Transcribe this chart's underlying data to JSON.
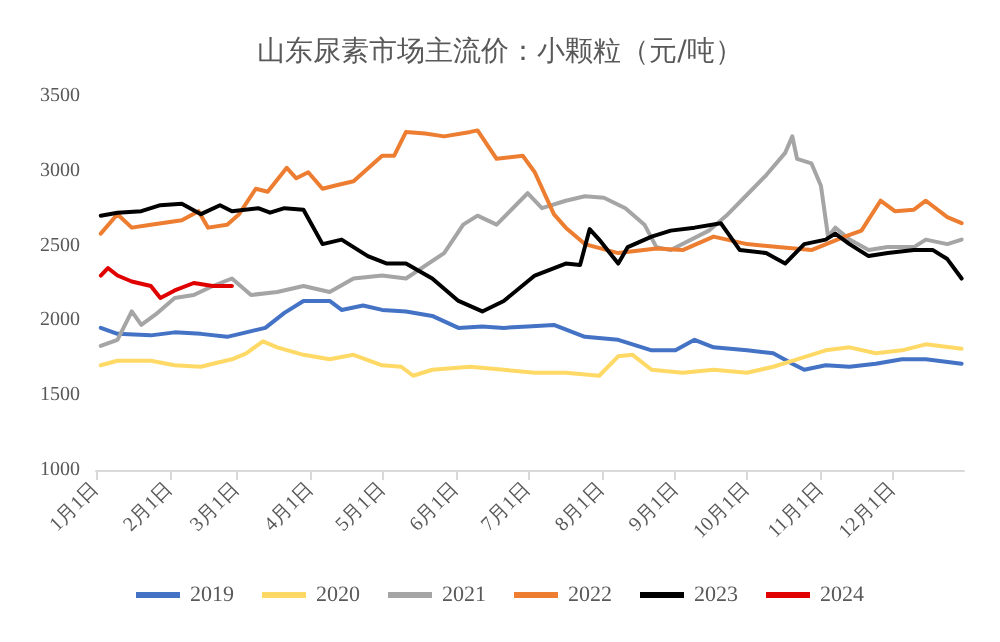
{
  "chart_data": {
    "type": "line",
    "title": "山东尿素市场主流价：小颗粒（元/吨）",
    "xlim": [
      "--01-01",
      "--12-31"
    ],
    "xticks": [
      {
        "value": "--01-01",
        "label": "1月1日"
      },
      {
        "value": "--02-01",
        "label": "2月1日"
      },
      {
        "value": "--03-01",
        "label": "3月1日"
      },
      {
        "value": "--04-01",
        "label": "4月1日"
      },
      {
        "value": "--05-01",
        "label": "5月1日"
      },
      {
        "value": "--06-01",
        "label": "6月1日"
      },
      {
        "value": "--07-01",
        "label": "7月1日"
      },
      {
        "value": "--08-01",
        "label": "8月1日"
      },
      {
        "value": "--09-01",
        "label": "9月1日"
      },
      {
        "value": "--10-01",
        "label": "10月1日"
      },
      {
        "value": "--11-01",
        "label": "11月1日"
      },
      {
        "value": "--12-01",
        "label": "12月1日"
      }
    ],
    "ylim": [
      1000,
      3500
    ],
    "yticks": [
      1000,
      1500,
      2000,
      2500,
      3000,
      3500
    ],
    "grid": false,
    "legend": "bottom",
    "marker": "none",
    "line_style": "solid",
    "series": [
      {
        "name": "2019",
        "color": "#4472c4",
        "x": [
          "--01-03",
          "--01-10",
          "--01-24",
          "--02-03",
          "--02-14",
          "--02-25",
          "--03-05",
          "--03-13",
          "--03-21",
          "--03-29",
          "--04-09",
          "--04-14",
          "--04-23",
          "--05-01",
          "--05-11",
          "--05-22",
          "--06-02",
          "--06-12",
          "--06-21",
          "--07-01",
          "--07-12",
          "--07-25",
          "--08-08",
          "--08-22",
          "--09-01",
          "--09-09",
          "--09-17",
          "--10-01",
          "--10-12",
          "--10-20",
          "--10-25",
          "--11-03",
          "--11-13",
          "--11-24",
          "--12-05",
          "--12-15",
          "--12-30"
        ],
        "values": [
          1950,
          1910,
          1900,
          1920,
          1910,
          1890,
          1920,
          1950,
          2050,
          2130,
          2130,
          2070,
          2100,
          2070,
          2060,
          2030,
          1950,
          1960,
          1950,
          1960,
          1970,
          1890,
          1870,
          1800,
          1800,
          1870,
          1820,
          1800,
          1780,
          1710,
          1670,
          1700,
          1690,
          1710,
          1740,
          1740,
          1710
        ]
      },
      {
        "name": "2020",
        "color": "#ffd966",
        "x": [
          "--01-03",
          "--01-10",
          "--01-24",
          "--02-03",
          "--02-14",
          "--02-19",
          "--02-27",
          "--03-05",
          "--03-12",
          "--03-18",
          "--03-29",
          "--04-09",
          "--04-19",
          "--05-01",
          "--05-09",
          "--05-14",
          "--05-22",
          "--06-07",
          "--06-21",
          "--07-04",
          "--07-17",
          "--07-31",
          "--08-08",
          "--08-14",
          "--08-22",
          "--09-04",
          "--09-17",
          "--10-01",
          "--10-12",
          "--10-22",
          "--11-03",
          "--11-13",
          "--11-24",
          "--12-05",
          "--12-15",
          "--12-30"
        ],
        "values": [
          1700,
          1730,
          1730,
          1700,
          1690,
          1710,
          1740,
          1780,
          1860,
          1820,
          1770,
          1740,
          1770,
          1700,
          1690,
          1630,
          1670,
          1690,
          1670,
          1650,
          1650,
          1630,
          1760,
          1770,
          1670,
          1650,
          1670,
          1650,
          1690,
          1740,
          1800,
          1820,
          1780,
          1800,
          1840,
          1810
        ]
      },
      {
        "name": "2021",
        "color": "#a5a5a5",
        "x": [
          "--01-03",
          "--01-10",
          "--01-16",
          "--01-20",
          "--01-26",
          "--02-03",
          "--02-11",
          "--02-19",
          "--02-27",
          "--03-07",
          "--03-18",
          "--03-29",
          "--04-09",
          "--04-19",
          "--05-01",
          "--05-11",
          "--05-27",
          "--06-04",
          "--06-10",
          "--06-18",
          "--07-01",
          "--07-07",
          "--07-17",
          "--07-25",
          "--08-02",
          "--08-11",
          "--08-19",
          "--08-24",
          "--08-30",
          "--09-15",
          "--09-23",
          "--10-01",
          "--10-09",
          "--10-17",
          "--10-20",
          "--10-22",
          "--10-28",
          "--11-01",
          "--11-04",
          "--11-07",
          "--11-13",
          "--11-21",
          "--11-29",
          "--12-10",
          "--12-15",
          "--12-24",
          "--12-30"
        ],
        "values": [
          1830,
          1870,
          2060,
          1970,
          2040,
          2150,
          2170,
          2230,
          2280,
          2170,
          2190,
          2230,
          2190,
          2280,
          2300,
          2280,
          2450,
          2640,
          2700,
          2640,
          2850,
          2750,
          2800,
          2830,
          2820,
          2750,
          2640,
          2490,
          2470,
          2600,
          2710,
          2840,
          2970,
          3120,
          3230,
          3080,
          3050,
          2900,
          2560,
          2620,
          2540,
          2470,
          2490,
          2490,
          2540,
          2510,
          2540
        ]
      },
      {
        "name": "2022",
        "color": "#ed7d31",
        "x": [
          "--01-03",
          "--01-10",
          "--01-16",
          "--01-24",
          "--02-06",
          "--02-13",
          "--02-17",
          "--02-25",
          "--03-02",
          "--03-09",
          "--03-14",
          "--03-22",
          "--03-26",
          "--03-31",
          "--04-06",
          "--04-11",
          "--04-19",
          "--05-01",
          "--05-06",
          "--05-11",
          "--05-19",
          "--05-27",
          "--06-07",
          "--06-10",
          "--06-18",
          "--06-29",
          "--07-04",
          "--07-12",
          "--07-17",
          "--07-25",
          "--08-08",
          "--08-24",
          "--09-04",
          "--09-17",
          "--10-01",
          "--10-14",
          "--10-28",
          "--11-11",
          "--11-18",
          "--11-26",
          "--12-02",
          "--12-10",
          "--12-15",
          "--12-24",
          "--12-30"
        ],
        "values": [
          2580,
          2710,
          2620,
          2640,
          2670,
          2730,
          2620,
          2640,
          2710,
          2880,
          2860,
          3020,
          2950,
          2990,
          2880,
          2900,
          2930,
          3100,
          3100,
          3260,
          3250,
          3230,
          3260,
          3270,
          3080,
          3100,
          2990,
          2710,
          2620,
          2510,
          2450,
          2480,
          2470,
          2560,
          2510,
          2490,
          2470,
          2560,
          2600,
          2800,
          2730,
          2740,
          2800,
          2690,
          2650
        ]
      },
      {
        "name": "2023",
        "color": "#000000",
        "x": [
          "--01-03",
          "--01-10",
          "--01-20",
          "--01-28",
          "--02-06",
          "--02-14",
          "--02-22",
          "--02-27",
          "--03-10",
          "--03-15",
          "--03-21",
          "--03-29",
          "--04-06",
          "--04-14",
          "--04-25",
          "--05-03",
          "--05-11",
          "--05-22",
          "--06-02",
          "--06-12",
          "--06-21",
          "--07-04",
          "--07-17",
          "--07-23",
          "--07-27",
          "--07-31",
          "--08-08",
          "--08-12",
          "--08-22",
          "--08-30",
          "--09-09",
          "--09-20",
          "--09-28",
          "--10-09",
          "--10-17",
          "--10-25",
          "--11-03",
          "--11-07",
          "--11-13",
          "--11-21",
          "--11-29",
          "--12-10",
          "--12-18",
          "--12-24",
          "--12-30"
        ],
        "values": [
          2700,
          2720,
          2730,
          2770,
          2780,
          2710,
          2770,
          2730,
          2750,
          2720,
          2750,
          2740,
          2510,
          2540,
          2430,
          2380,
          2380,
          2280,
          2130,
          2060,
          2130,
          2300,
          2380,
          2370,
          2610,
          2540,
          2380,
          2490,
          2560,
          2600,
          2620,
          2650,
          2470,
          2450,
          2380,
          2510,
          2540,
          2580,
          2510,
          2430,
          2450,
          2470,
          2470,
          2410,
          2280
        ]
      },
      {
        "name": "2024",
        "color": "#e00000",
        "x": [
          "--01-03",
          "--01-06",
          "--01-10",
          "--01-16",
          "--01-24",
          "--01-28",
          "--02-03",
          "--02-11",
          "--02-19",
          "--02-27"
        ],
        "values": [
          2300,
          2350,
          2300,
          2260,
          2230,
          2150,
          2200,
          2250,
          2230,
          2230
        ]
      }
    ]
  }
}
